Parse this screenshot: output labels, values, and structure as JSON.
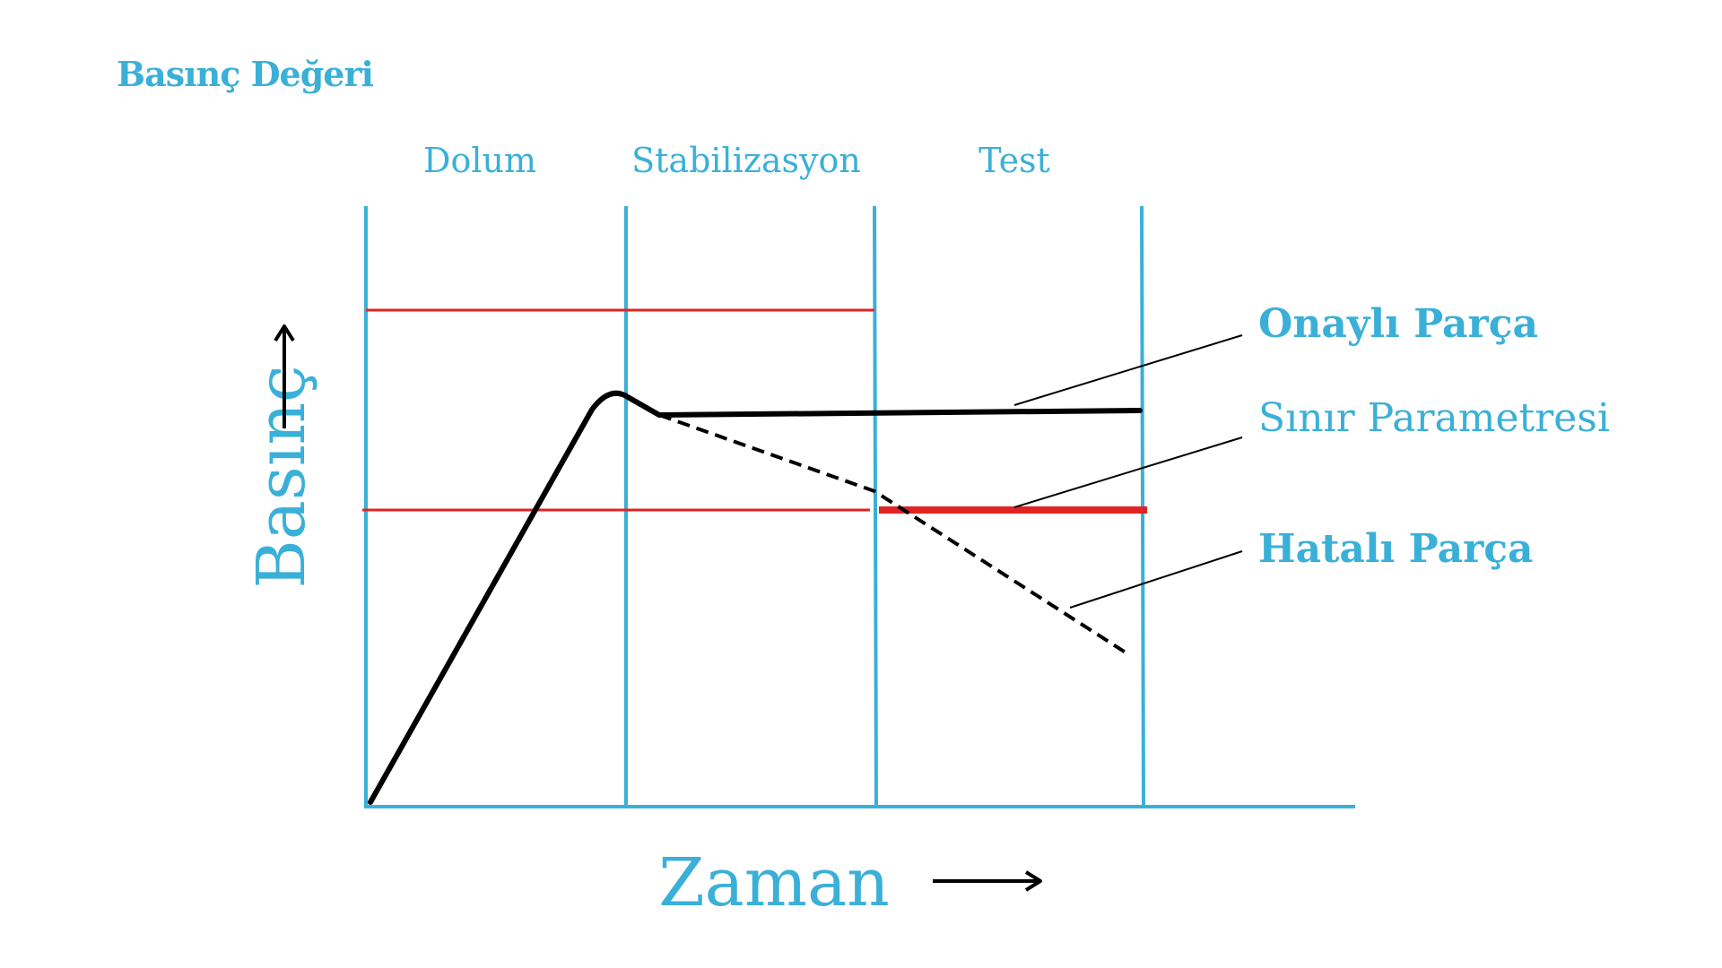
{
  "colors": {
    "accent": "#3ab0d8",
    "limit": "#e02424",
    "curve": "#000000"
  },
  "header": {
    "title": "Basınç Değeri"
  },
  "phases": [
    {
      "label": "Dolum"
    },
    {
      "label": "Stabilizasyon"
    },
    {
      "label": "Test"
    }
  ],
  "axes": {
    "y_label": "Basınç",
    "x_label": "Zaman"
  },
  "legend": {
    "approved": "Onaylı Parça",
    "limit": "Sınır Parametresi",
    "faulty": "Hatalı Parça"
  }
}
